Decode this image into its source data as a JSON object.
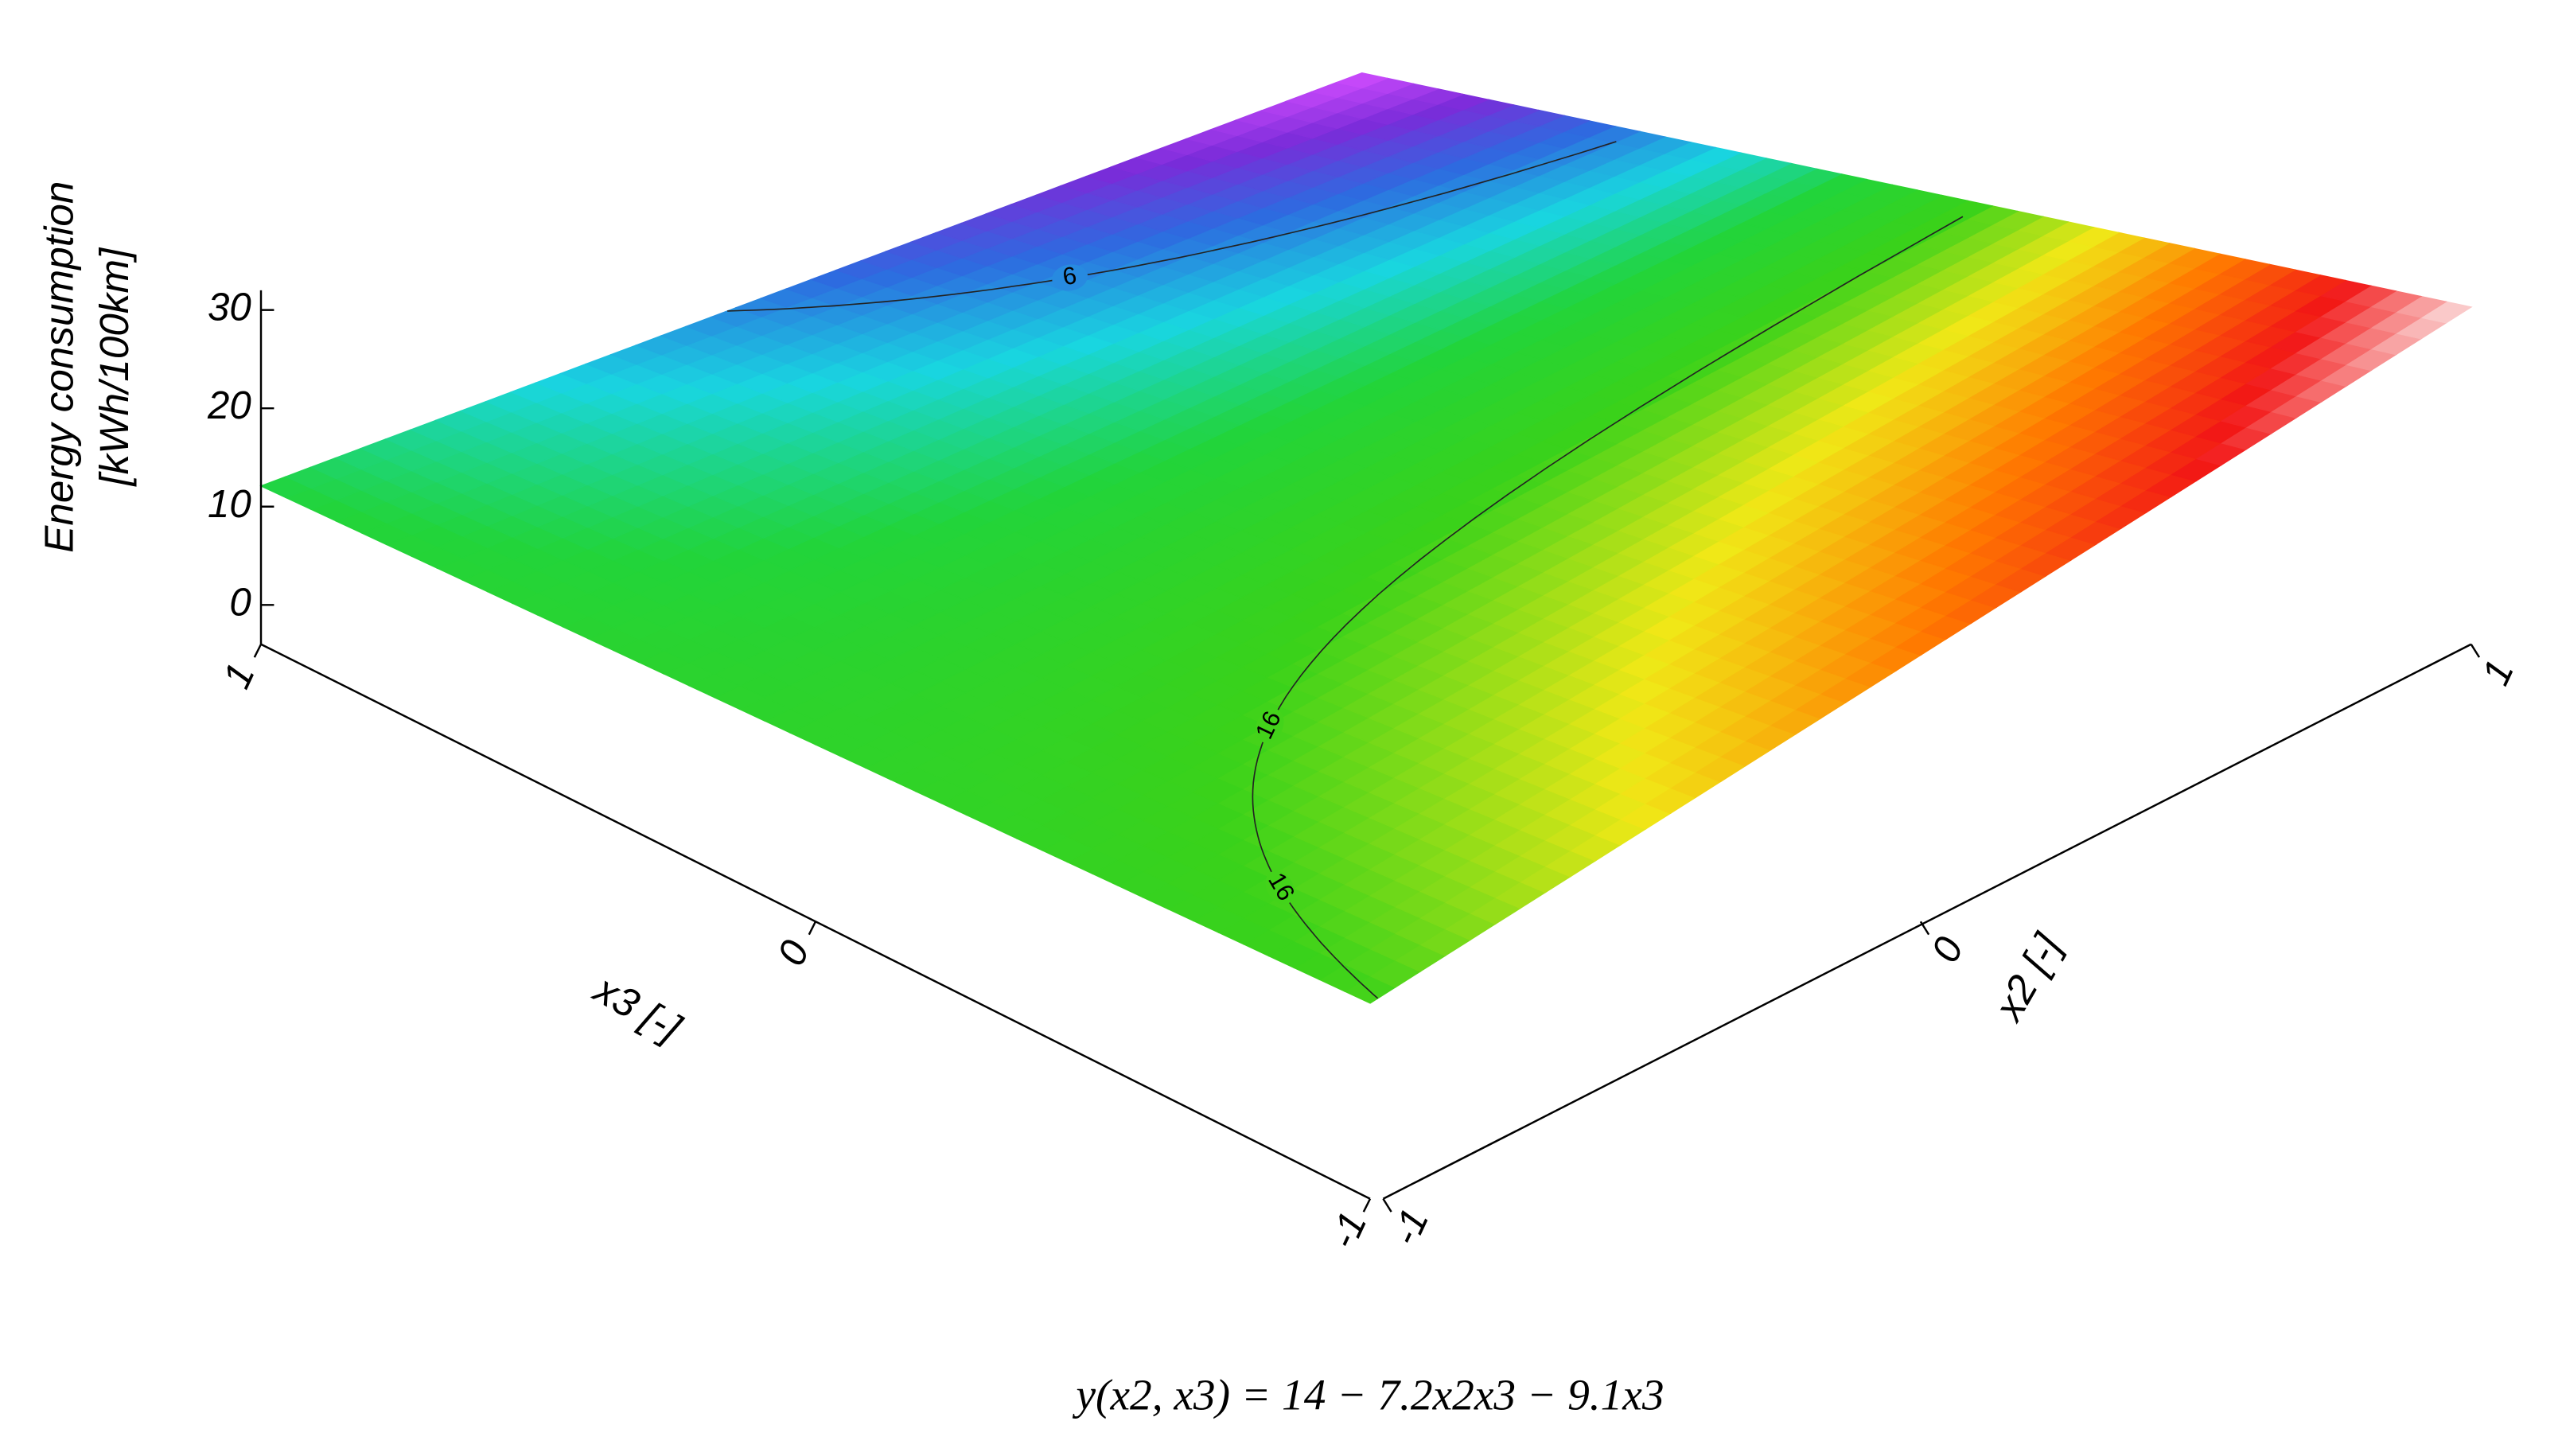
{
  "chart_data": {
    "type": "surface",
    "formula": "y(x2, x3) = 14 − 7.2x2x3 − 9.1x3",
    "xlabel": "x3 [-]",
    "ylabel": "x2 [-]",
    "zlabel": [
      "Energy consumption",
      "[kWh/100km]"
    ],
    "x2": [
      -1,
      0,
      1
    ],
    "x3": [
      -1,
      0,
      1
    ],
    "z": [
      [
        15.9,
        23.1,
        30.3
      ],
      [
        14,
        14,
        14
      ],
      [
        12.1,
        4.9,
        -2.3
      ]
    ],
    "x2lim": [
      -1,
      1
    ],
    "x3lim": [
      -1,
      1
    ],
    "zlim": [
      -4,
      32
    ],
    "x2ticks": [
      -1,
      0,
      1
    ],
    "x3ticks": [
      -1,
      0,
      1
    ],
    "zticks": [
      0,
      10,
      20,
      30
    ],
    "contour_labels": [
      6,
      16,
      16
    ],
    "colormap": [
      "#d24dff",
      "#7a2bd9",
      "#2d6be0",
      "#19d6e0",
      "#22d43a",
      "#3ad21a",
      "#f0e817",
      "#ff7a00",
      "#f21616",
      "#fbe8e8"
    ]
  }
}
